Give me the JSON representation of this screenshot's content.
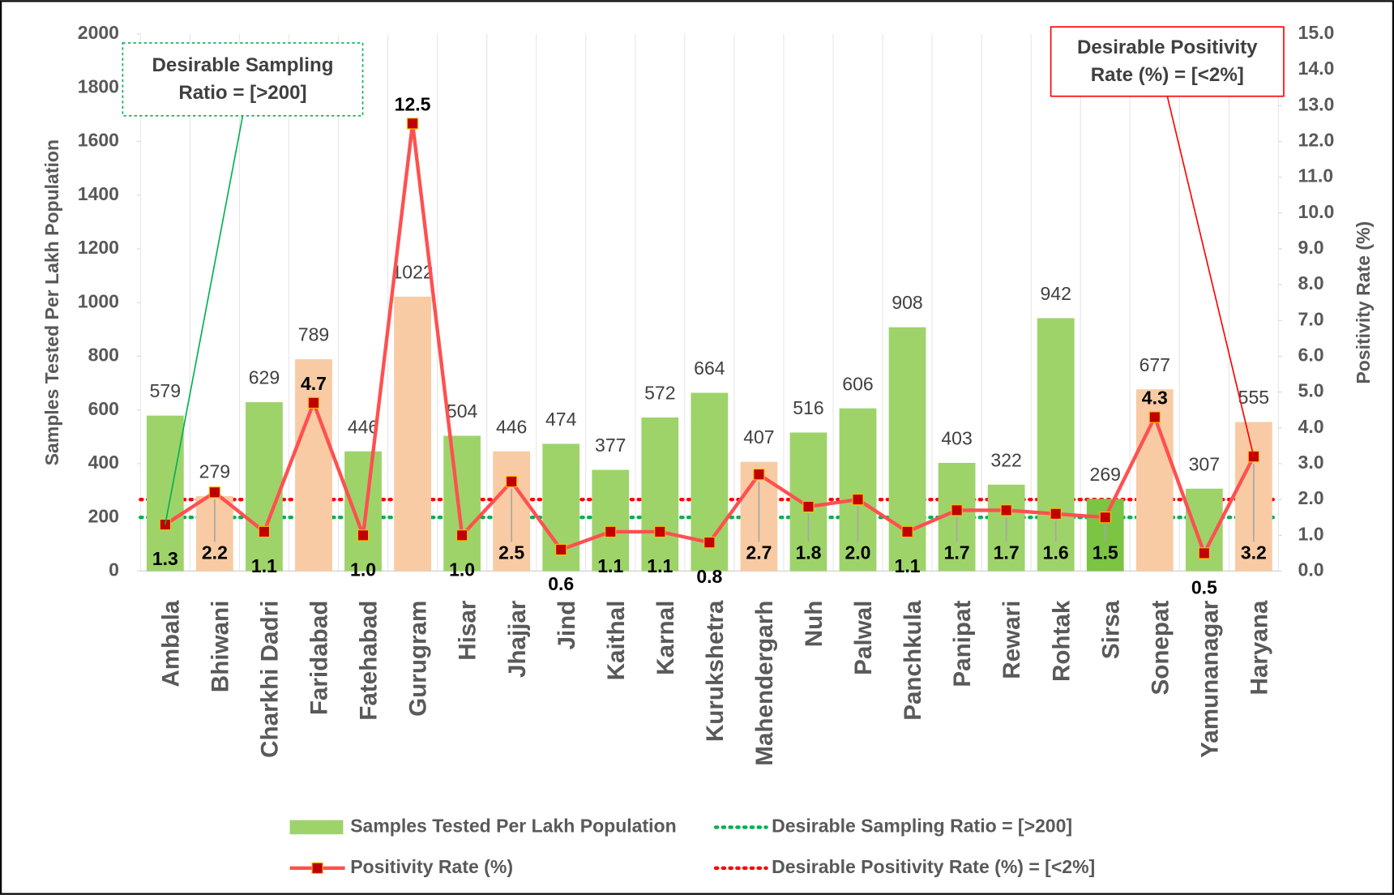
{
  "chart_data": {
    "type": "bar",
    "categories": [
      "Ambala",
      "Bhiwani",
      "Charkhi Dadri",
      "Faridabad",
      "Fatehabad",
      "Gurugram",
      "Hisar",
      "Jhajjar",
      "Jind",
      "Kaithal",
      "Karnal",
      "Kurukshetra",
      "Mahendergarh",
      "Nuh",
      "Palwal",
      "Panchkula",
      "Panipat",
      "Rewari",
      "Rohtak",
      "Sirsa",
      "Sonepat",
      "Yamunanagar",
      "Haryana"
    ],
    "series": [
      {
        "name": "Samples Tested Per Lakh Population",
        "type": "bar",
        "color": "#9ed36a",
        "colors": [
          "#9ed36a",
          "#f8cba4",
          "#9ed36a",
          "#f8cba4",
          "#9ed36a",
          "#f8cba4",
          "#9ed36a",
          "#f8cba4",
          "#9ed36a",
          "#9ed36a",
          "#9ed36a",
          "#9ed36a",
          "#f8cba4",
          "#9ed36a",
          "#9ed36a",
          "#9ed36a",
          "#9ed36a",
          "#9ed36a",
          "#9ed36a",
          "#7cc444",
          "#f8cba4",
          "#9ed36a",
          "#f8cba4"
        ],
        "values": [
          579,
          279,
          629,
          789,
          446,
          1022,
          504,
          446,
          474,
          377,
          572,
          664,
          407,
          516,
          606,
          908,
          403,
          322,
          942,
          269,
          677,
          307,
          555
        ]
      },
      {
        "name": "Positivity Rate (%)",
        "type": "line",
        "axis": "y2",
        "color": "#ff5050",
        "marker_color": "#c00000",
        "values": [
          1.3,
          2.2,
          1.1,
          4.7,
          1.0,
          12.5,
          1.0,
          2.5,
          0.6,
          1.1,
          1.1,
          0.8,
          2.7,
          1.8,
          2.0,
          1.1,
          1.7,
          1.7,
          1.6,
          1.5,
          4.3,
          0.5,
          3.2
        ],
        "value_labels": [
          "1.3",
          "2.2",
          "1.1",
          "4.7",
          "1.0",
          "12.5",
          "1.0",
          "2.5",
          "0.6",
          "1.1",
          "1.1",
          "0.8",
          "2.7",
          "1.8",
          "2.0",
          "1.1",
          "1.7",
          "1.7",
          "1.6",
          "1.5",
          "4.3",
          "0.5",
          "3.2"
        ]
      }
    ],
    "reference_lines": [
      {
        "name": "Desirable Sampling Ratio = [>200]",
        "value": 200,
        "axis": "y",
        "color": "#00b050"
      },
      {
        "name": "Desirable Positivity Rate (%) = [<2%]",
        "value": 2,
        "axis": "y2",
        "color": "#ff0000"
      }
    ],
    "annotations": [
      {
        "text": "Desirable Sampling Ratio = [>200]",
        "target": 0,
        "color": "#00b050"
      },
      {
        "text": "Desirable Positivity Rate (%) = [<2%]",
        "target": 22,
        "color": "#ff0000"
      }
    ],
    "ylabel": "Samples Tested Per Lakh Population",
    "y2label": "Positivity Rate (%)",
    "ylim": [
      0,
      2000
    ],
    "yticks": [
      0,
      200,
      400,
      600,
      800,
      1000,
      1200,
      1400,
      1600,
      1800,
      2000
    ],
    "y2lim": [
      0,
      15
    ],
    "y2ticks": [
      {
        "value": 0,
        "label": "0.0"
      },
      {
        "value": 1,
        "label": "1.0"
      },
      {
        "value": 2,
        "label": "2.0"
      },
      {
        "value": 3,
        "label": "3.0"
      },
      {
        "value": 4,
        "label": "4.0"
      },
      {
        "value": 5,
        "label": "5.0"
      },
      {
        "value": 6,
        "label": "6.0"
      },
      {
        "value": 7,
        "label": "7.0"
      },
      {
        "value": 8,
        "label": "8.0"
      },
      {
        "value": 9,
        "label": "9.0"
      },
      {
        "value": 10,
        "label": "10.0"
      },
      {
        "value": 11,
        "label": "11.0"
      },
      {
        "value": 12,
        "label": "12.0"
      },
      {
        "value": 13,
        "label": "13.0"
      },
      {
        "value": 14,
        "label": "14.0"
      },
      {
        "value": 15,
        "label": "15.0"
      }
    ],
    "legend": "bottom",
    "grid": false
  }
}
